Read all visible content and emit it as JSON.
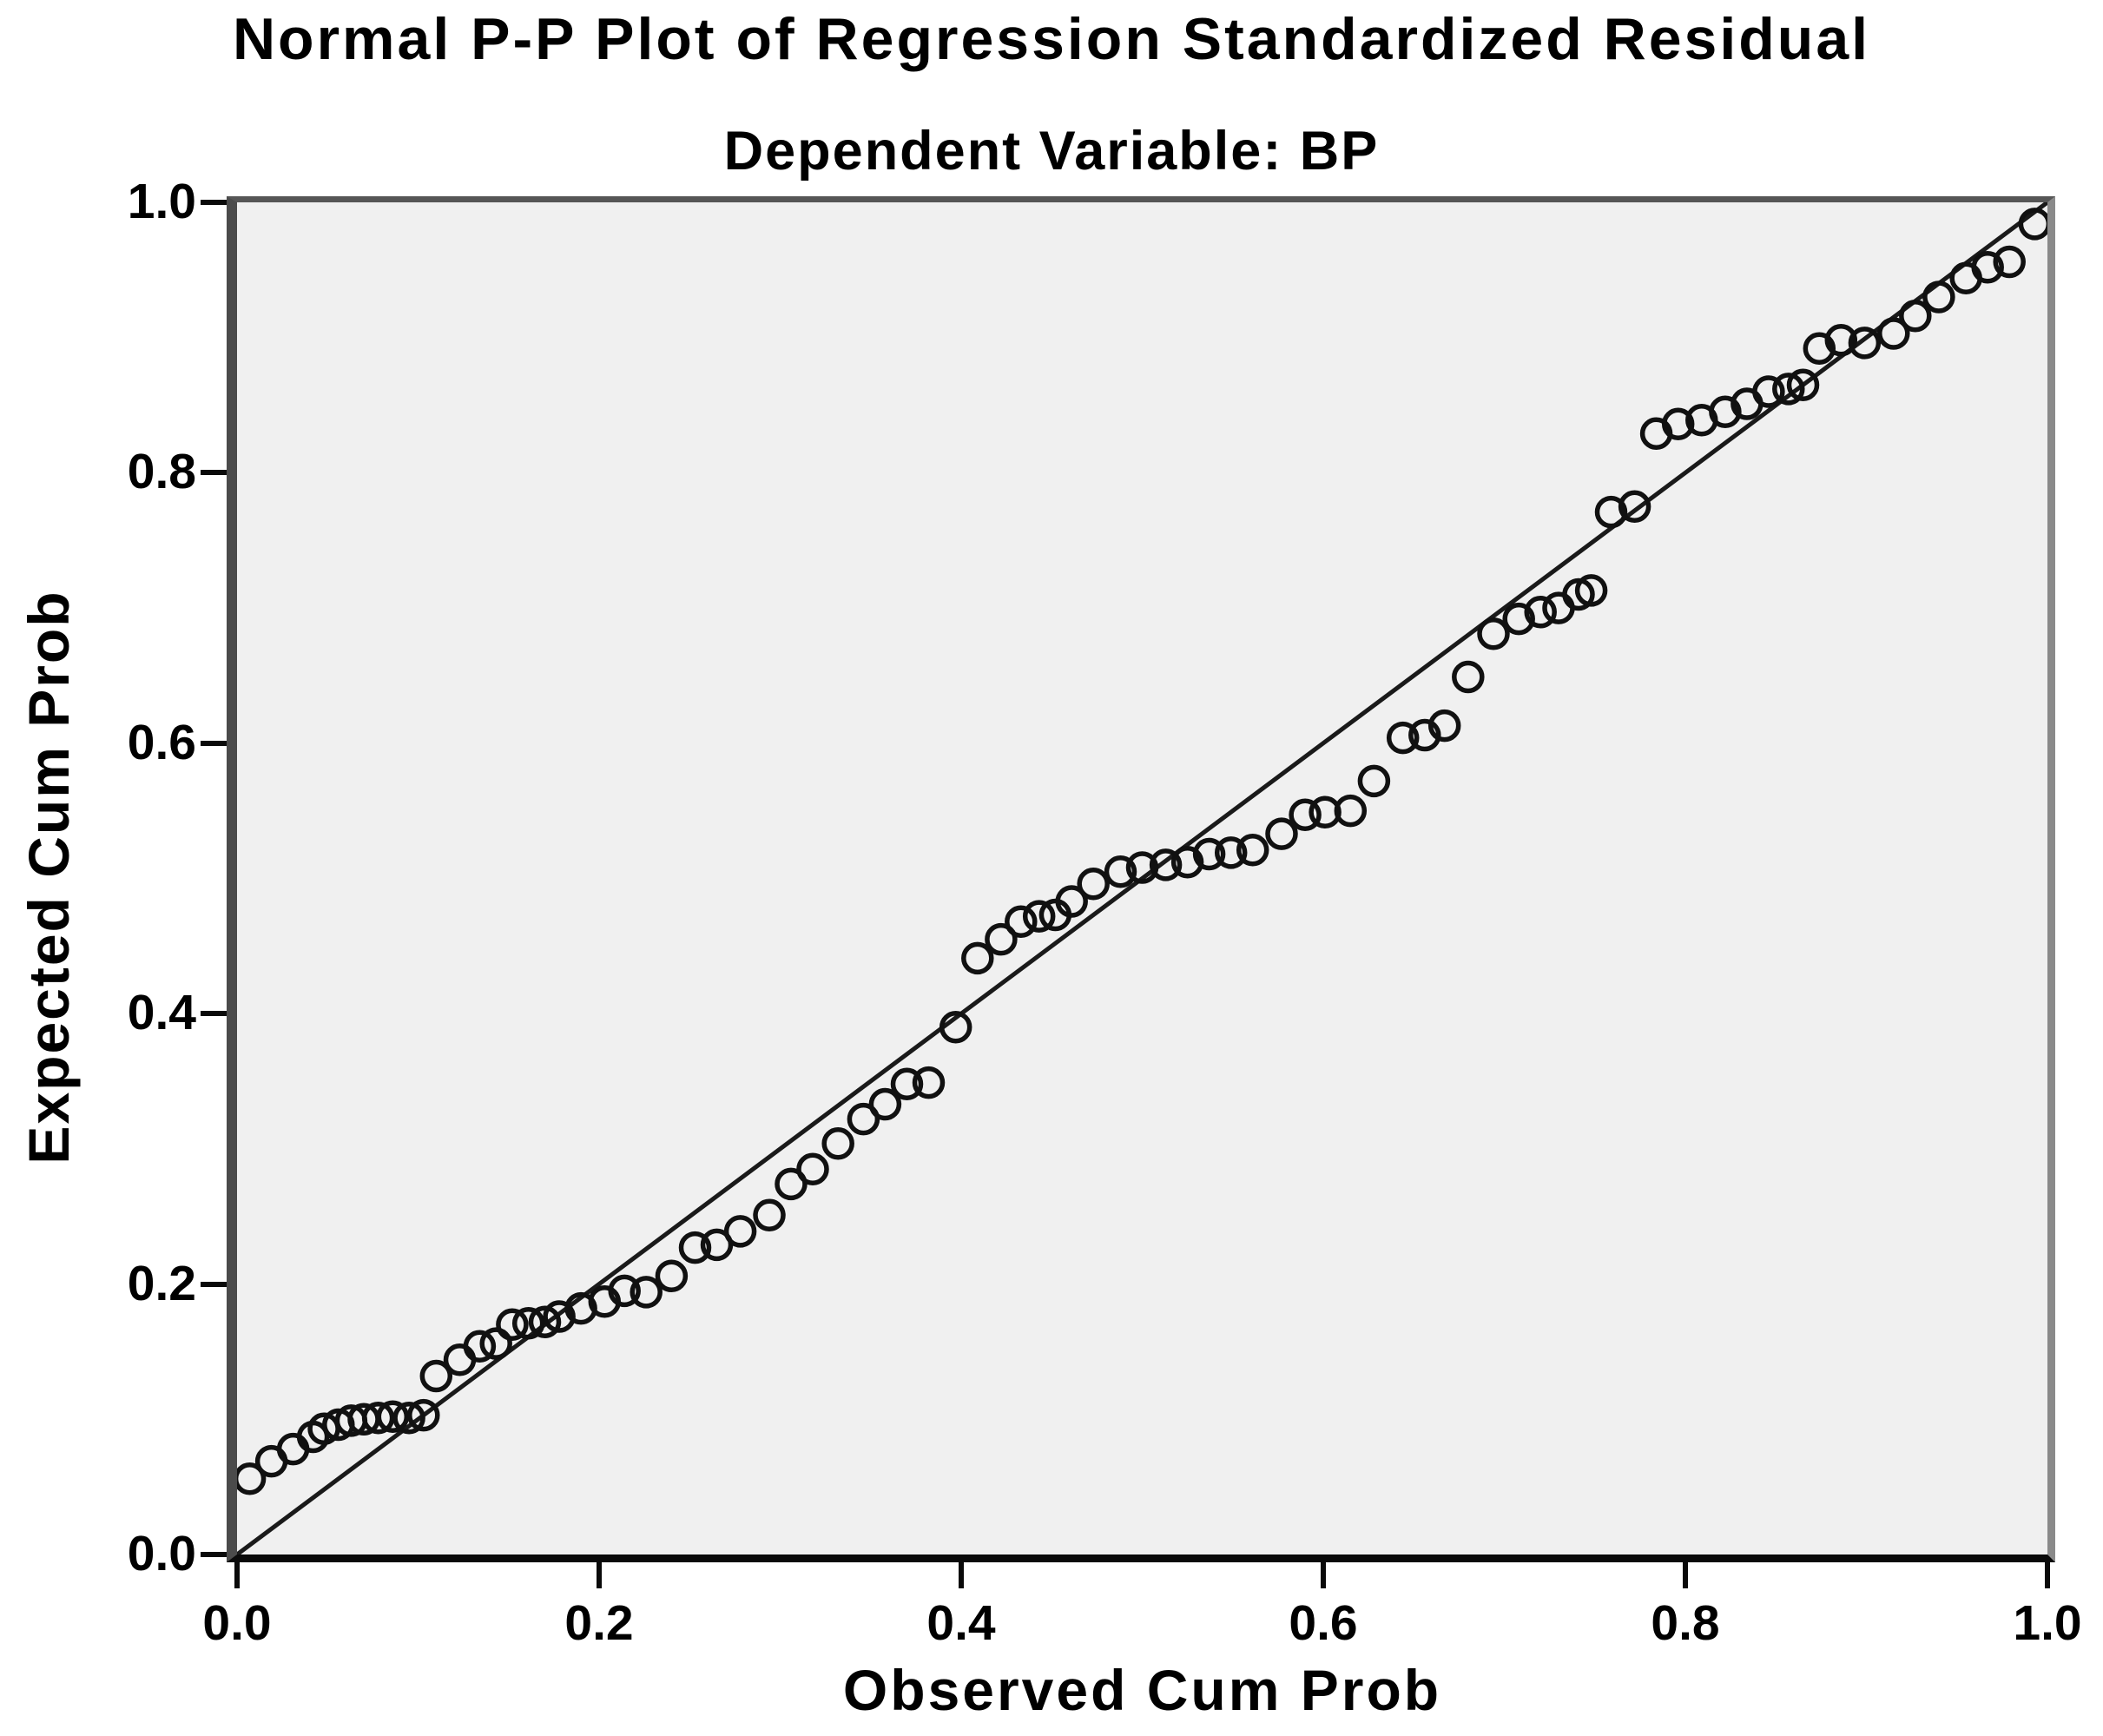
{
  "chart_data": {
    "type": "scatter",
    "title": "Normal P-P Plot of Regression Standardized Residual",
    "subtitle": "Dependent Variable: BP",
    "xlabel": "Observed Cum Prob",
    "ylabel": "Expected Cum Prob",
    "xlim": [
      0.0,
      1.0
    ],
    "ylim": [
      0.0,
      1.0
    ],
    "x_tick_labels": [
      "0.0",
      "0.2",
      "0.4",
      "0.6",
      "0.8",
      "1.0"
    ],
    "y_tick_labels": [
      "0.0",
      "0.2",
      "0.4",
      "0.6",
      "0.8",
      "1.0"
    ],
    "grid": false,
    "legend_position": "none",
    "reference_line": {
      "type": "diagonal",
      "from": [
        0.0,
        0.0
      ],
      "to": [
        1.0,
        1.0
      ]
    },
    "marker": {
      "shape": "open-circle",
      "radius_px": 16,
      "stroke_px": 5.5
    },
    "colors": {
      "plot_background": "#f0f0f0",
      "marker_stroke": "#111111",
      "reference_line": "#1a1a1a",
      "frame_left": "#4b4b4b",
      "frame_top": "#565656",
      "frame_right": "#8a8a8a",
      "axis_bottom": "#0a0a0a",
      "text": "#000000"
    },
    "series": [
      {
        "name": "Regression standardized residual",
        "points": [
          [
            0.007,
            0.056
          ],
          [
            0.019,
            0.069
          ],
          [
            0.031,
            0.078
          ],
          [
            0.042,
            0.087
          ],
          [
            0.048,
            0.093
          ],
          [
            0.056,
            0.096
          ],
          [
            0.063,
            0.099
          ],
          [
            0.07,
            0.1
          ],
          [
            0.078,
            0.101
          ],
          [
            0.086,
            0.102
          ],
          [
            0.095,
            0.101
          ],
          [
            0.103,
            0.103
          ],
          [
            0.11,
            0.132
          ],
          [
            0.123,
            0.144
          ],
          [
            0.134,
            0.154
          ],
          [
            0.143,
            0.156
          ],
          [
            0.152,
            0.17
          ],
          [
            0.161,
            0.171
          ],
          [
            0.17,
            0.172
          ],
          [
            0.178,
            0.176
          ],
          [
            0.19,
            0.182
          ],
          [
            0.203,
            0.187
          ],
          [
            0.214,
            0.195
          ],
          [
            0.226,
            0.194
          ],
          [
            0.24,
            0.206
          ],
          [
            0.253,
            0.227
          ],
          [
            0.265,
            0.229
          ],
          [
            0.278,
            0.239
          ],
          [
            0.294,
            0.251
          ],
          [
            0.306,
            0.274
          ],
          [
            0.318,
            0.285
          ],
          [
            0.332,
            0.304
          ],
          [
            0.346,
            0.322
          ],
          [
            0.358,
            0.333
          ],
          [
            0.37,
            0.348
          ],
          [
            0.382,
            0.349
          ],
          [
            0.397,
            0.39
          ],
          [
            0.409,
            0.441
          ],
          [
            0.422,
            0.455
          ],
          [
            0.433,
            0.468
          ],
          [
            0.443,
            0.472
          ],
          [
            0.452,
            0.473
          ],
          [
            0.461,
            0.483
          ],
          [
            0.473,
            0.496
          ],
          [
            0.488,
            0.505
          ],
          [
            0.5,
            0.508
          ],
          [
            0.513,
            0.51
          ],
          [
            0.525,
            0.512
          ],
          [
            0.537,
            0.518
          ],
          [
            0.549,
            0.519
          ],
          [
            0.561,
            0.521
          ],
          [
            0.577,
            0.533
          ],
          [
            0.59,
            0.547
          ],
          [
            0.601,
            0.549
          ],
          [
            0.615,
            0.55
          ],
          [
            0.628,
            0.572
          ],
          [
            0.644,
            0.604
          ],
          [
            0.656,
            0.606
          ],
          [
            0.667,
            0.613
          ],
          [
            0.68,
            0.649
          ],
          [
            0.694,
            0.681
          ],
          [
            0.708,
            0.692
          ],
          [
            0.72,
            0.697
          ],
          [
            0.73,
            0.7
          ],
          [
            0.741,
            0.71
          ],
          [
            0.748,
            0.713
          ],
          [
            0.759,
            0.771
          ],
          [
            0.772,
            0.775
          ],
          [
            0.784,
            0.829
          ],
          [
            0.796,
            0.836
          ],
          [
            0.809,
            0.839
          ],
          [
            0.822,
            0.845
          ],
          [
            0.834,
            0.851
          ],
          [
            0.846,
            0.86
          ],
          [
            0.857,
            0.862
          ],
          [
            0.865,
            0.865
          ],
          [
            0.874,
            0.892
          ],
          [
            0.886,
            0.898
          ],
          [
            0.899,
            0.896
          ],
          [
            0.915,
            0.903
          ],
          [
            0.927,
            0.916
          ],
          [
            0.94,
            0.93
          ],
          [
            0.955,
            0.944
          ],
          [
            0.967,
            0.952
          ],
          [
            0.979,
            0.956
          ],
          [
            0.993,
            0.984
          ]
        ]
      }
    ]
  }
}
